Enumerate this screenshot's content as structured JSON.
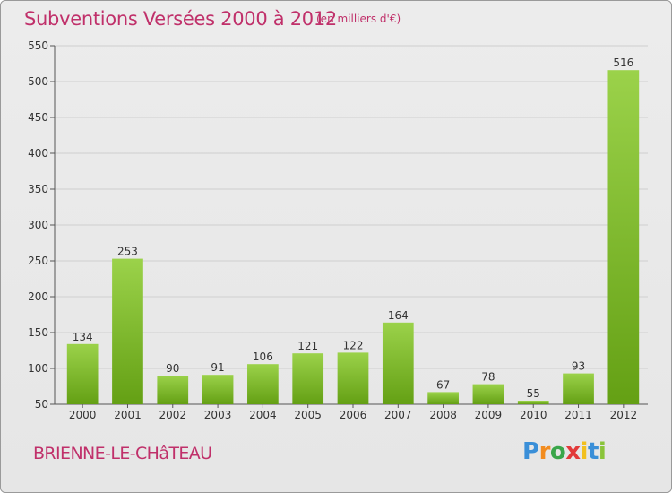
{
  "header": {
    "title": "Subventions Versées 2000 à 2012",
    "unit": "(en milliers d'€)"
  },
  "footer": {
    "commune": "BRIENNE-LE-CHâTEAU",
    "logo": [
      "P",
      "r",
      "o",
      "x",
      "i",
      "t",
      "i"
    ]
  },
  "colors": {
    "title": "#c0306a",
    "bar_light": "#9bd24a",
    "bar_dark": "#64a014",
    "logo": [
      "#3a8fd8",
      "#f28c1f",
      "#3aa64a",
      "#e23a3a",
      "#f2c01f",
      "#3a8fd8",
      "#8ac43a"
    ]
  },
  "chart_data": {
    "type": "bar",
    "title": "Subventions Versées 2000 à 2012",
    "xlabel": "",
    "ylabel": "",
    "categories": [
      "2000",
      "2001",
      "2002",
      "2003",
      "2004",
      "2005",
      "2006",
      "2007",
      "2008",
      "2009",
      "2010",
      "2011",
      "2012"
    ],
    "values": [
      134,
      253,
      90,
      91,
      106,
      121,
      122,
      164,
      67,
      78,
      55,
      93,
      516
    ],
    "ylim": [
      50,
      550
    ],
    "yticks": [
      50,
      100,
      150,
      200,
      250,
      300,
      350,
      400,
      450,
      500,
      550
    ],
    "grid": true
  }
}
